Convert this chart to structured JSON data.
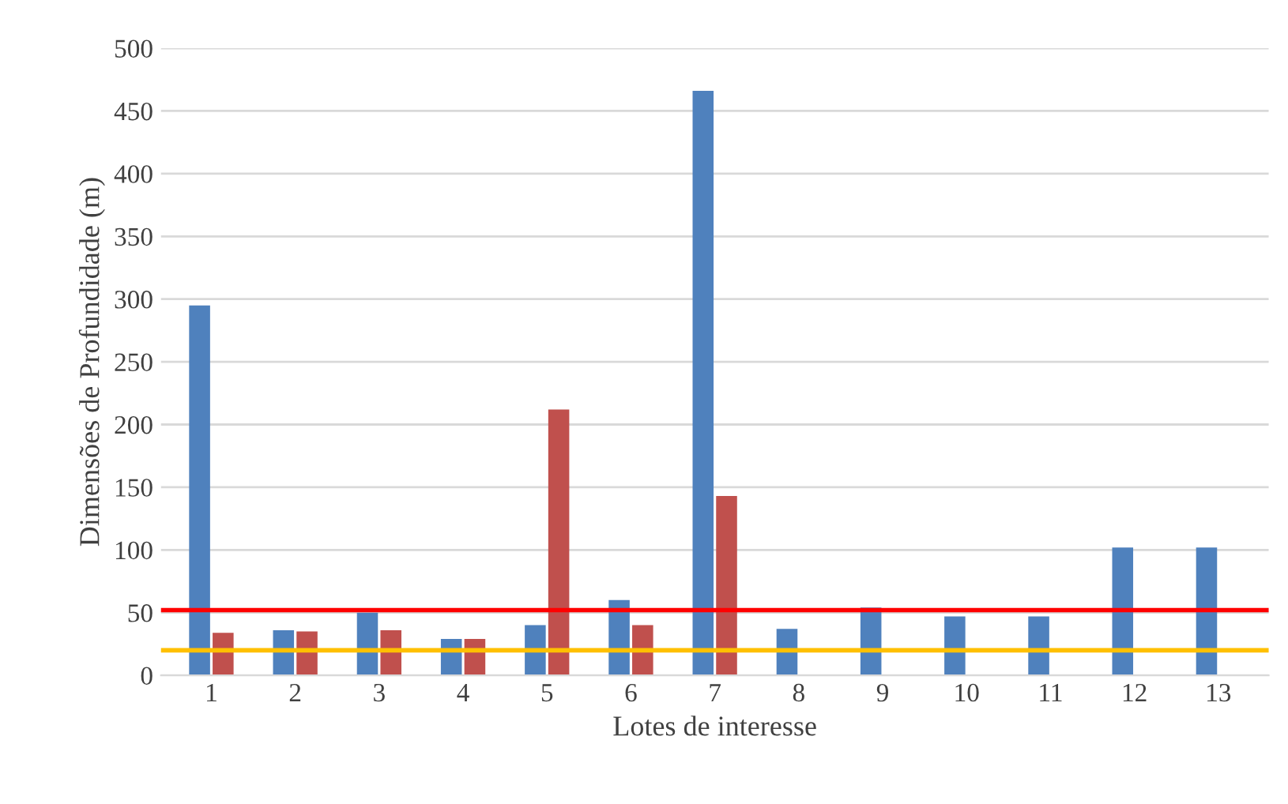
{
  "chart_data": {
    "type": "bar",
    "xlabel": "Lotes de interesse",
    "ylabel": "Dimensões de Profundidade (m)",
    "categories": [
      "1",
      "2",
      "3",
      "4",
      "5",
      "6",
      "7",
      "8",
      "9",
      "10",
      "11",
      "12",
      "13"
    ],
    "series": [
      {
        "color": "#4f81bd",
        "values": [
          295,
          36,
          50,
          29,
          40,
          60,
          466,
          37,
          54,
          47,
          47,
          102,
          102
        ]
      },
      {
        "color": "#c0504d",
        "values": [
          34,
          35,
          36,
          29,
          212,
          40,
          143,
          null,
          null,
          null,
          null,
          null,
          null
        ]
      }
    ],
    "ylim": [
      0,
      500
    ],
    "yticks": [
      0,
      50,
      100,
      150,
      200,
      250,
      300,
      350,
      400,
      450,
      500
    ],
    "grid": "y",
    "ref_lines": [
      {
        "axis": "y",
        "value": 52,
        "color": "#ff0000"
      },
      {
        "axis": "y",
        "value": 20,
        "color": "#ffc000"
      }
    ]
  }
}
